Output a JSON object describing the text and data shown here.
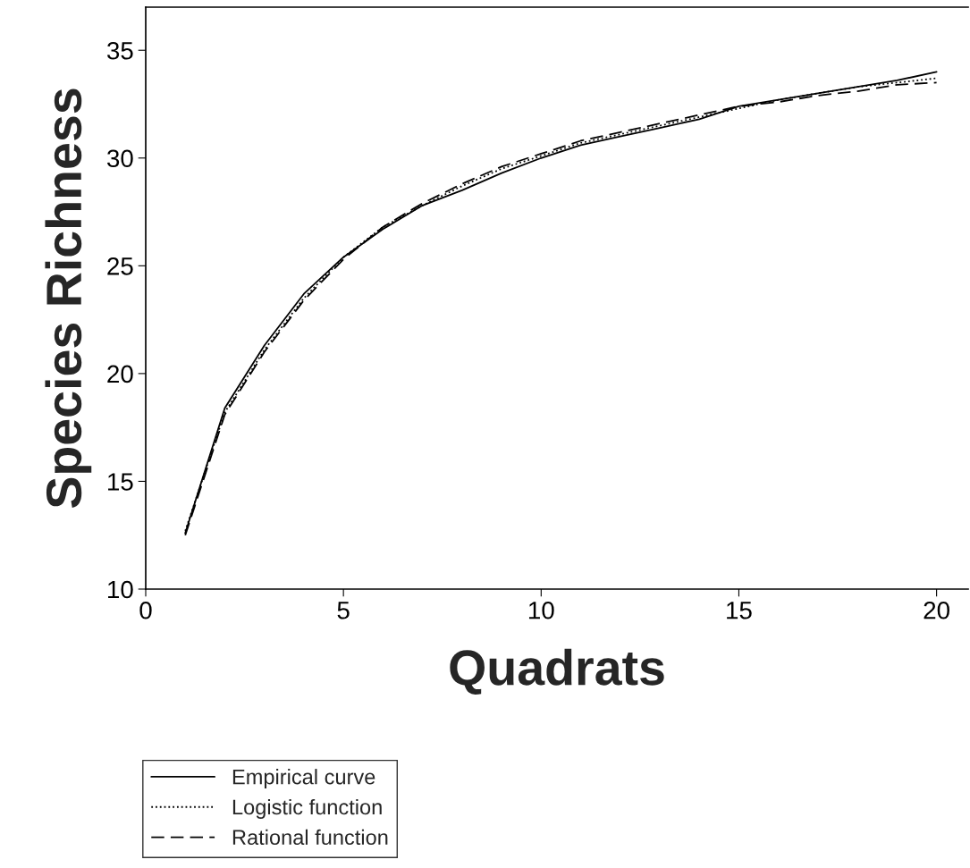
{
  "chart_data": {
    "type": "line",
    "xlabel": "Quadrats",
    "ylabel": "Species Richness",
    "x": [
      1,
      2,
      3,
      4,
      5,
      6,
      7,
      8,
      9,
      10,
      11,
      12,
      13,
      14,
      15,
      16,
      17,
      18,
      19,
      20
    ],
    "series": [
      {
        "name": "Empirical curve",
        "color": "#000000",
        "line_style": "solid",
        "values": [
          12.6,
          18.4,
          21.3,
          23.7,
          25.4,
          26.7,
          27.8,
          28.5,
          29.3,
          30.0,
          30.6,
          31.0,
          31.4,
          31.8,
          32.4,
          32.7,
          33.0,
          33.3,
          33.6,
          34.0
        ]
      },
      {
        "name": "Logistic function",
        "color": "#000000",
        "line_style": "dotted",
        "values": [
          12.7,
          18.2,
          21.1,
          23.5,
          25.4,
          26.8,
          27.8,
          28.7,
          29.5,
          30.1,
          30.7,
          31.1,
          31.5,
          31.9,
          32.3,
          32.7,
          33.0,
          33.3,
          33.5,
          33.7
        ]
      },
      {
        "name": "Rational function",
        "color": "#000000",
        "line_style": "dashed",
        "values": [
          12.5,
          18.1,
          21.0,
          23.4,
          25.3,
          26.8,
          27.9,
          28.8,
          29.6,
          30.2,
          30.8,
          31.2,
          31.6,
          32.0,
          32.4,
          32.6,
          32.9,
          33.1,
          33.4,
          33.5
        ]
      }
    ],
    "xlim": [
      0,
      20.8
    ],
    "ylim": [
      10,
      37
    ],
    "xticks": [
      0,
      5,
      10,
      15,
      20
    ],
    "yticks": [
      10,
      15,
      20,
      25,
      30,
      35
    ],
    "grid": false,
    "legend": "bottom left",
    "marker": "none"
  }
}
